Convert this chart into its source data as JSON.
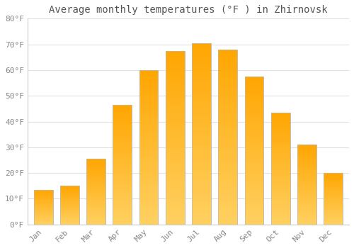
{
  "months": [
    "Jan",
    "Feb",
    "Mar",
    "Apr",
    "May",
    "Jun",
    "Jul",
    "Aug",
    "Sep",
    "Oct",
    "Nov",
    "Dec"
  ],
  "values": [
    13.5,
    15.0,
    25.5,
    46.5,
    60.0,
    67.5,
    70.5,
    68.0,
    57.5,
    43.5,
    31.0,
    20.0
  ],
  "bar_color_top": "#FFA500",
  "bar_color_bottom": "#FFD060",
  "bar_edge_color": "#BBBBBB",
  "background_color": "#FFFFFF",
  "grid_color": "#E0E0E0",
  "title": "Average monthly temperatures (°F ) in Zhirnovsk",
  "title_fontsize": 10,
  "tick_label_color": "#888888",
  "title_color": "#555555",
  "ylim": [
    0,
    80
  ],
  "yticks": [
    0,
    10,
    20,
    30,
    40,
    50,
    60,
    70,
    80
  ],
  "ytick_labels": [
    "0°F",
    "10°F",
    "20°F",
    "30°F",
    "40°F",
    "50°F",
    "60°F",
    "70°F",
    "80°F"
  ],
  "font_family": "monospace"
}
